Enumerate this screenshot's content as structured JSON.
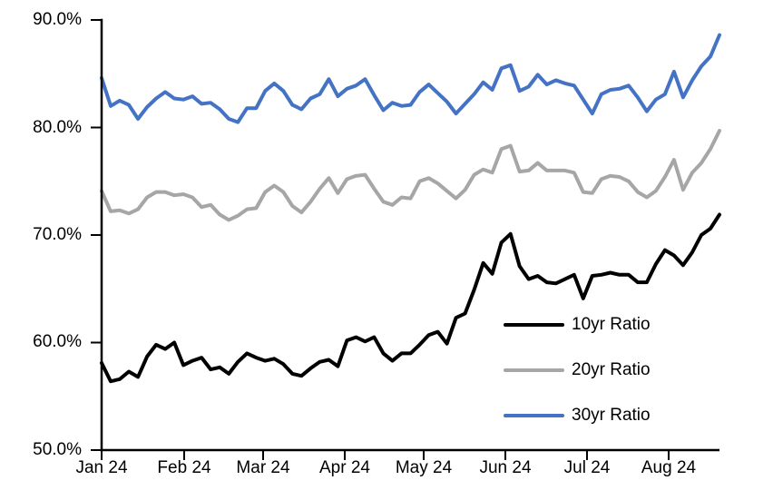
{
  "chart_data": {
    "type": "line",
    "title": "",
    "xlabel": "",
    "ylabel": "",
    "ylim": [
      50,
      90
    ],
    "y_tick_step": 10,
    "grid": false,
    "background": "#ffffff",
    "axis_color": "#000000",
    "legend_position": "inside-lower-right",
    "y_tick_labels": [
      "90.0%",
      "80.0%",
      "70.0%",
      "60.0%",
      "50.0%"
    ],
    "x_tick_labels": [
      "Jan 24",
      "Feb 24",
      "Mar 24",
      "Apr 24",
      "May 24",
      "Jun 24",
      "Jul 24",
      "Aug 24"
    ],
    "x_dates": [
      "2024-01-01",
      "2024-01-04",
      "2024-01-08",
      "2024-01-11",
      "2024-01-15",
      "2024-01-18",
      "2024-01-21",
      "2024-01-25",
      "2024-01-28",
      "2024-02-01",
      "2024-02-04",
      "2024-02-07",
      "2024-02-11",
      "2024-02-14",
      "2024-02-17",
      "2024-02-21",
      "2024-02-24",
      "2024-02-27",
      "2024-03-02",
      "2024-03-05",
      "2024-03-09",
      "2024-03-12",
      "2024-03-16",
      "2024-03-19",
      "2024-03-22",
      "2024-03-26",
      "2024-03-29",
      "2024-04-02",
      "2024-04-05",
      "2024-04-08",
      "2024-04-12",
      "2024-04-15",
      "2024-04-18",
      "2024-04-22",
      "2024-04-25",
      "2024-04-29",
      "2024-05-02",
      "2024-05-06",
      "2024-05-09",
      "2024-05-12",
      "2024-05-16",
      "2024-05-19",
      "2024-05-23",
      "2024-05-26",
      "2024-05-29",
      "2024-06-02",
      "2024-06-05",
      "2024-06-09",
      "2024-06-12",
      "2024-06-16",
      "2024-06-19",
      "2024-06-22",
      "2024-06-26",
      "2024-06-29",
      "2024-07-03",
      "2024-07-06",
      "2024-07-09",
      "2024-07-13",
      "2024-07-16",
      "2024-07-20",
      "2024-07-23",
      "2024-07-26",
      "2024-07-30",
      "2024-08-02",
      "2024-08-06",
      "2024-08-09",
      "2024-08-12",
      "2024-08-16",
      "2024-08-19"
    ],
    "series": [
      {
        "name": "10yr Ratio",
        "color": "#000000",
        "values": [
          58.1,
          56.4,
          56.6,
          57.3,
          56.8,
          58.7,
          59.8,
          59.4,
          60.0,
          57.9,
          58.3,
          58.6,
          57.5,
          57.7,
          57.1,
          58.2,
          59.0,
          58.6,
          58.3,
          58.5,
          58.0,
          57.1,
          56.9,
          57.6,
          58.2,
          58.4,
          57.8,
          60.2,
          60.5,
          60.1,
          60.5,
          59.0,
          58.3,
          59.0,
          59.0,
          59.8,
          60.7,
          61.0,
          59.9,
          62.3,
          62.7,
          64.9,
          67.4,
          66.4,
          69.3,
          70.1,
          67.1,
          65.9,
          66.2,
          65.6,
          65.5,
          65.9,
          66.3,
          64.1,
          66.2,
          66.3,
          66.5,
          66.3,
          66.3,
          65.6,
          65.6,
          67.3,
          68.6,
          68.1,
          67.2,
          68.4,
          70.0,
          70.6,
          71.9
        ]
      },
      {
        "name": "20yr Ratio",
        "color": "#A6A6A6",
        "values": [
          74.1,
          72.2,
          72.3,
          72.0,
          72.4,
          73.5,
          74.0,
          74.0,
          73.7,
          73.8,
          73.5,
          72.6,
          72.8,
          71.9,
          71.4,
          71.8,
          72.4,
          72.5,
          74.0,
          74.6,
          74.0,
          72.7,
          72.1,
          73.1,
          74.3,
          75.3,
          73.9,
          75.2,
          75.5,
          75.6,
          74.3,
          73.1,
          72.8,
          73.5,
          73.4,
          75.0,
          75.3,
          74.8,
          74.1,
          73.4,
          74.2,
          75.6,
          76.1,
          75.8,
          78.0,
          78.3,
          75.9,
          76.0,
          76.7,
          76.0,
          76.0,
          76.0,
          75.8,
          74.0,
          73.9,
          75.2,
          75.5,
          75.4,
          75.0,
          74.0,
          73.5,
          74.1,
          75.4,
          77.0,
          74.2,
          75.8,
          76.7,
          78.0,
          79.7
        ]
      },
      {
        "name": "30yr Ratio",
        "color": "#4472C4",
        "values": [
          84.6,
          82.0,
          82.5,
          82.1,
          80.8,
          81.9,
          82.7,
          83.3,
          82.7,
          82.6,
          82.9,
          82.2,
          82.3,
          81.7,
          80.8,
          80.5,
          81.8,
          81.8,
          83.4,
          84.1,
          83.4,
          82.1,
          81.7,
          82.7,
          83.1,
          84.5,
          82.9,
          83.6,
          83.9,
          84.5,
          83.0,
          81.6,
          82.3,
          82.0,
          82.1,
          83.3,
          84.0,
          83.2,
          82.4,
          81.3,
          82.2,
          83.1,
          84.2,
          83.5,
          85.5,
          85.8,
          83.4,
          83.8,
          84.9,
          84.0,
          84.4,
          84.1,
          83.9,
          82.6,
          81.3,
          83.1,
          83.5,
          83.6,
          83.9,
          82.8,
          81.5,
          82.6,
          83.1,
          85.2,
          82.8,
          84.4,
          85.7,
          86.6,
          88.6
        ]
      }
    ]
  }
}
